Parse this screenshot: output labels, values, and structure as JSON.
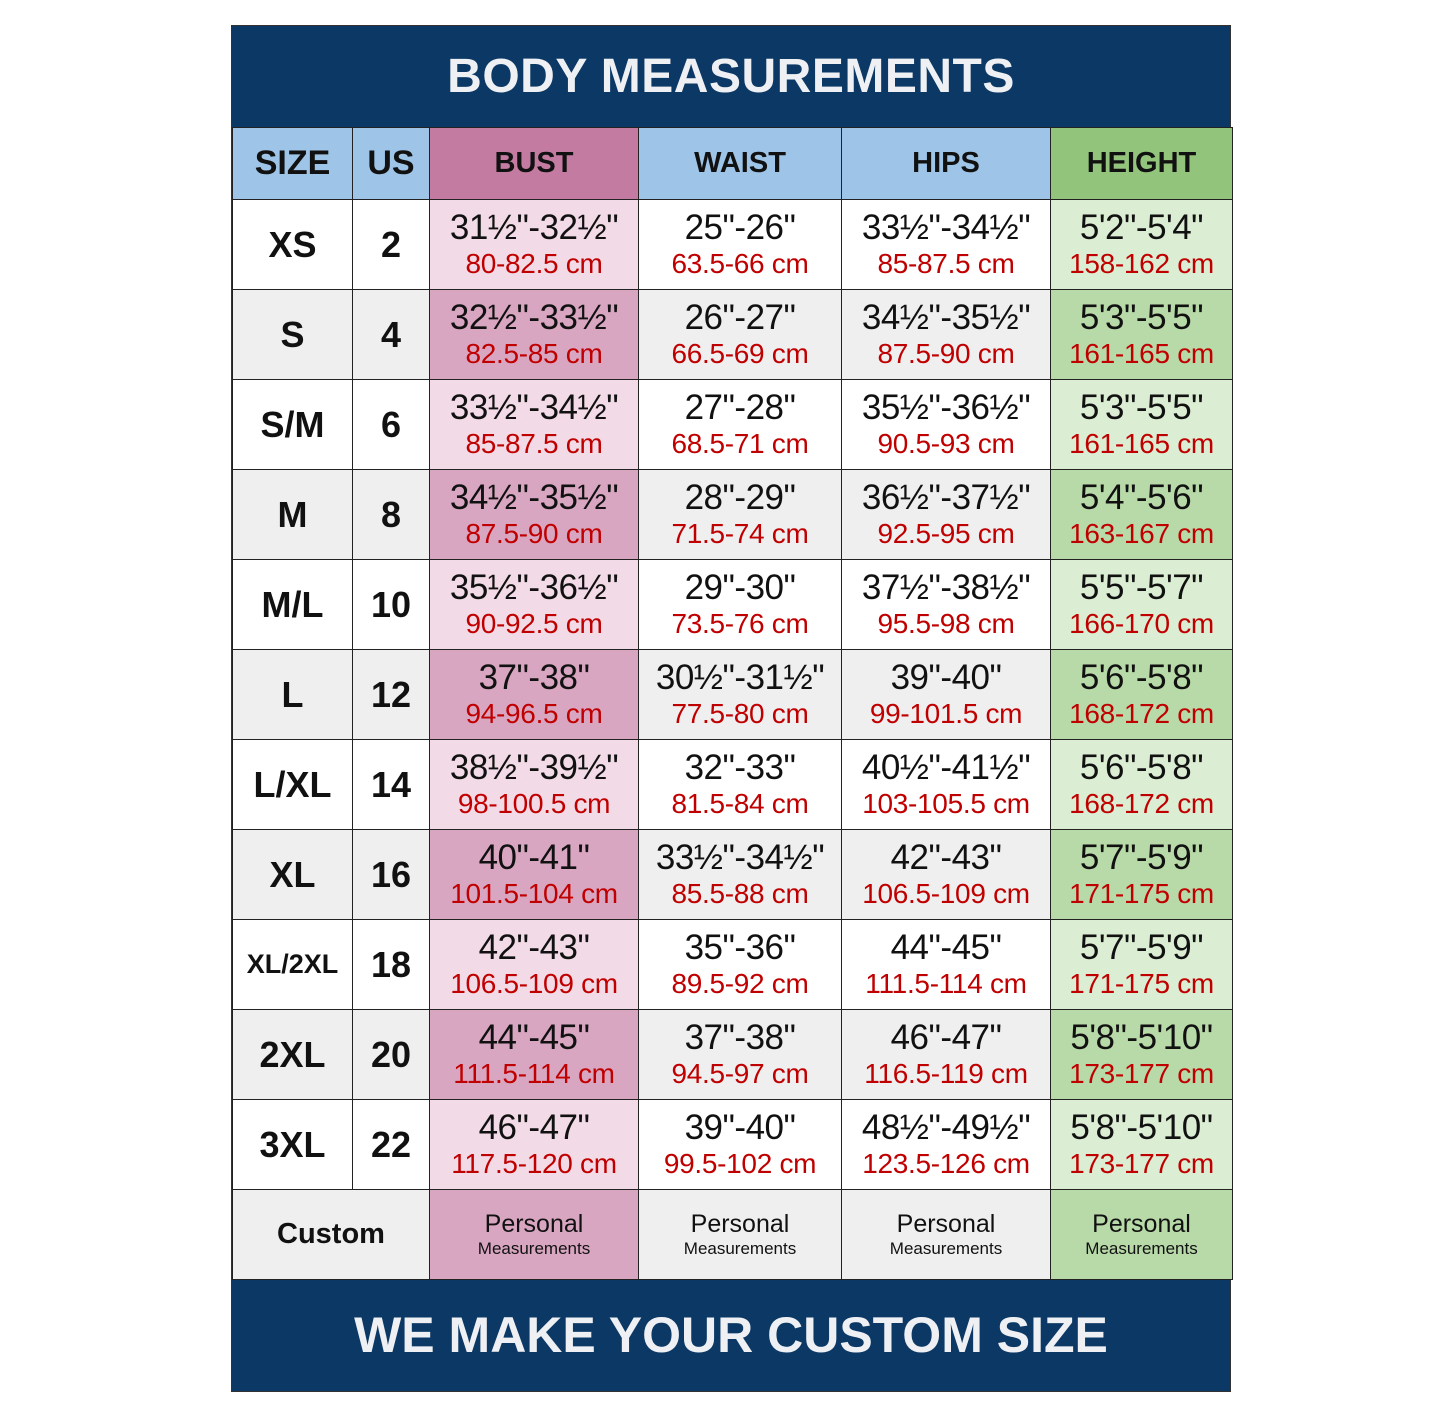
{
  "title": "BODY MEASUREMENTS",
  "footer": "WE MAKE YOUR CUSTOM SIZE",
  "colors": {
    "banner": "#0b3864",
    "header_blue": "#9ec4e7",
    "header_bust": "#c47ba2",
    "header_height": "#92c47b",
    "cm_text": "#c00000"
  },
  "headers": [
    "SIZE",
    "US",
    "BUST",
    "WAIST",
    "HIPS",
    "HEIGHT"
  ],
  "rows": [
    {
      "size": "XS",
      "us": "2",
      "bust": [
        "31½\"-32½\"",
        "80-82.5 cm"
      ],
      "waist": [
        "25\"-26\"",
        "63.5-66 cm"
      ],
      "hips": [
        "33½\"-34½\"",
        "85-87.5 cm"
      ],
      "height": [
        "5'2\"-5'4\"",
        "158-162 cm"
      ]
    },
    {
      "size": "S",
      "us": "4",
      "bust": [
        "32½\"-33½\"",
        "82.5-85 cm"
      ],
      "waist": [
        "26\"-27\"",
        "66.5-69 cm"
      ],
      "hips": [
        "34½\"-35½\"",
        "87.5-90 cm"
      ],
      "height": [
        "5'3\"-5'5\"",
        "161-165 cm"
      ]
    },
    {
      "size": "S/M",
      "us": "6",
      "bust": [
        "33½\"-34½\"",
        "85-87.5 cm"
      ],
      "waist": [
        "27\"-28\"",
        "68.5-71 cm"
      ],
      "hips": [
        "35½\"-36½\"",
        "90.5-93 cm"
      ],
      "height": [
        "5'3\"-5'5\"",
        "161-165 cm"
      ]
    },
    {
      "size": "M",
      "us": "8",
      "bust": [
        "34½\"-35½\"",
        "87.5-90 cm"
      ],
      "waist": [
        "28\"-29\"",
        "71.5-74 cm"
      ],
      "hips": [
        "36½\"-37½\"",
        "92.5-95 cm"
      ],
      "height": [
        "5'4\"-5'6\"",
        "163-167 cm"
      ]
    },
    {
      "size": "M/L",
      "us": "10",
      "bust": [
        "35½\"-36½\"",
        "90-92.5 cm"
      ],
      "waist": [
        "29\"-30\"",
        "73.5-76 cm"
      ],
      "hips": [
        "37½\"-38½\"",
        "95.5-98 cm"
      ],
      "height": [
        "5'5\"-5'7\"",
        "166-170 cm"
      ]
    },
    {
      "size": "L",
      "us": "12",
      "bust": [
        "37\"-38\"",
        "94-96.5 cm"
      ],
      "waist": [
        "30½\"-31½\"",
        "77.5-80 cm"
      ],
      "hips": [
        "39\"-40\"",
        "99-101.5 cm"
      ],
      "height": [
        "5'6\"-5'8\"",
        "168-172 cm"
      ]
    },
    {
      "size": "L/XL",
      "us": "14",
      "bust": [
        "38½\"-39½\"",
        "98-100.5 cm"
      ],
      "waist": [
        "32\"-33\"",
        "81.5-84 cm"
      ],
      "hips": [
        "40½\"-41½\"",
        "103-105.5 cm"
      ],
      "height": [
        "5'6\"-5'8\"",
        "168-172 cm"
      ]
    },
    {
      "size": "XL",
      "us": "16",
      "bust": [
        "40\"-41\"",
        "101.5-104 cm"
      ],
      "waist": [
        "33½\"-34½\"",
        "85.5-88 cm"
      ],
      "hips": [
        "42\"-43\"",
        "106.5-109 cm"
      ],
      "height": [
        "5'7\"-5'9\"",
        "171-175 cm"
      ]
    },
    {
      "size": "XL/2XL",
      "us": "18",
      "bust": [
        "42\"-43\"",
        "106.5-109 cm"
      ],
      "waist": [
        "35\"-36\"",
        "89.5-92 cm"
      ],
      "hips": [
        "44\"-45\"",
        "111.5-114 cm"
      ],
      "height": [
        "5'7\"-5'9\"",
        "171-175 cm"
      ]
    },
    {
      "size": "2XL",
      "us": "20",
      "bust": [
        "44\"-45\"",
        "111.5-114 cm"
      ],
      "waist": [
        "37\"-38\"",
        "94.5-97 cm"
      ],
      "hips": [
        "46\"-47\"",
        "116.5-119 cm"
      ],
      "height": [
        "5'8\"-5'10\"",
        "173-177 cm"
      ]
    },
    {
      "size": "3XL",
      "us": "22",
      "bust": [
        "46\"-47\"",
        "117.5-120 cm"
      ],
      "waist": [
        "39\"-40\"",
        "99.5-102 cm"
      ],
      "hips": [
        "48½\"-49½\"",
        "123.5-126 cm"
      ],
      "height": [
        "5'8\"-5'10\"",
        "173-177 cm"
      ]
    }
  ],
  "custom": {
    "label": "Custom",
    "line1": "Personal",
    "line2": "Measurements"
  }
}
